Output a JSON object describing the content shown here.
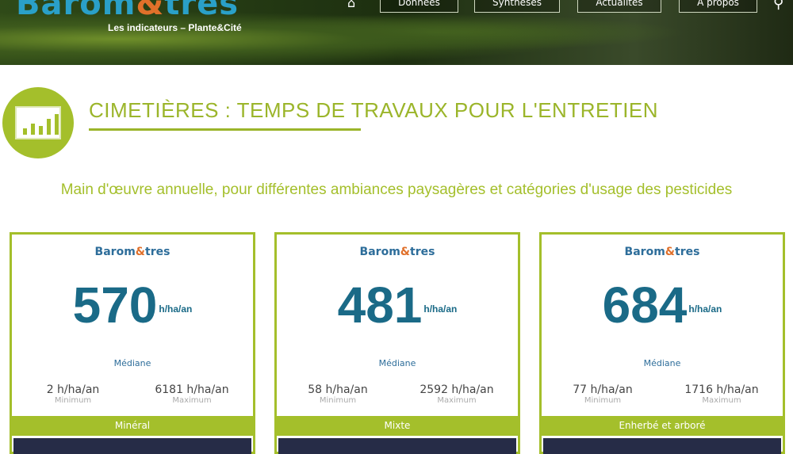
{
  "header": {
    "logo": "Barom&tres",
    "tagline": "Les indicateurs – Plante&Cité",
    "nav": [
      "Données",
      "Synthèses",
      "Actualités",
      "A propos"
    ]
  },
  "page": {
    "title": "CIMETIÈRES : TEMPS DE TRAVAUX POUR L'ENTRETIEN",
    "subtitle": "Main d'œuvre annuelle, pour différentes ambiances paysagères et catégories d'usage des pesticides"
  },
  "colors": {
    "accent": "#a4bf2b",
    "value": "#1a6a87",
    "dark": "#262c47"
  },
  "cards": [
    {
      "brand": "Barom&tres",
      "median": "570",
      "unit": "h/ha/an",
      "median_label": "Médiane",
      "min": "2 h/ha/an",
      "min_label": "Minimum",
      "max": "6181 h/ha/an",
      "max_label": "Maximum",
      "category": "Minéral"
    },
    {
      "brand": "Barom&tres",
      "median": "481",
      "unit": "h/ha/an",
      "median_label": "Médiane",
      "min": "58 h/ha/an",
      "min_label": "Minimum",
      "max": "2592 h/ha/an",
      "max_label": "Maximum",
      "category": "Mixte"
    },
    {
      "brand": "Barom&tres",
      "median": "684",
      "unit": "h/ha/an",
      "median_label": "Médiane",
      "min": "77 h/ha/an",
      "min_label": "Minimum",
      "max": "1716 h/ha/an",
      "max_label": "Maximum",
      "category": "Enherbé et arboré"
    }
  ]
}
